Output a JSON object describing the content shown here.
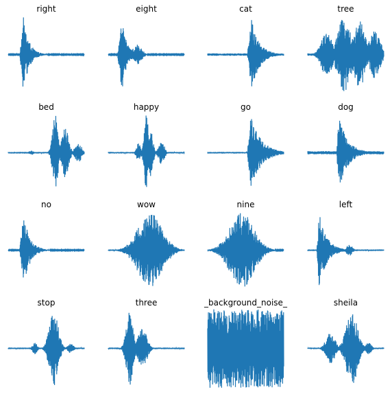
{
  "figure": {
    "line_color": "#1f77b4",
    "background": "#ffffff",
    "axes_visible": false
  },
  "chart_data": [
    {
      "type": "line",
      "title": "right",
      "waveform": {
        "onset": 0.15,
        "attack": 0.05,
        "decay": 0.22,
        "peak": 0.95,
        "floor": 0.01,
        "tail": 0.06
      }
    },
    {
      "type": "line",
      "title": "eight",
      "waveform": {
        "onset": 0.12,
        "attack": 0.06,
        "decay": 0.18,
        "peak": 0.95,
        "floor": 0.01,
        "tail": 0.08,
        "secondary": {
          "center": 0.38,
          "width": 0.08,
          "peak": 0.25
        }
      }
    },
    {
      "type": "line",
      "title": "cat",
      "waveform": {
        "onset": 0.52,
        "attack": 0.06,
        "decay": 0.3,
        "peak": 0.95,
        "floor": 0.03
      }
    },
    {
      "type": "line",
      "title": "tree",
      "waveform": {
        "onset": 0.1,
        "attack": 0.1,
        "decay": 0.6,
        "peak": 0.9,
        "floor": 0.03,
        "segments": [
          {
            "center": 0.25,
            "width": 0.1,
            "peak": 0.55
          },
          {
            "center": 0.48,
            "width": 0.12,
            "peak": 0.95
          },
          {
            "center": 0.68,
            "width": 0.1,
            "peak": 0.85
          },
          {
            "center": 0.88,
            "width": 0.1,
            "peak": 0.6
          }
        ]
      }
    },
    {
      "type": "line",
      "title": "bed",
      "waveform": {
        "onset": 0.55,
        "attack": 0.02,
        "decay": 0.45,
        "peak": 0.95,
        "floor": 0.02,
        "segments": [
          {
            "center": 0.62,
            "width": 0.05,
            "peak": 0.95
          },
          {
            "center": 0.75,
            "width": 0.06,
            "peak": 0.65
          },
          {
            "center": 0.92,
            "width": 0.06,
            "peak": 0.25
          },
          {
            "center": 0.3,
            "width": 0.04,
            "peak": 0.06
          }
        ]
      }
    },
    {
      "type": "line",
      "title": "happy",
      "waveform": {
        "onset": 0.3,
        "attack": 0.1,
        "decay": 0.6,
        "peak": 0.95,
        "floor": 0.02,
        "segments": [
          {
            "center": 0.4,
            "width": 0.04,
            "peak": 0.25
          },
          {
            "center": 0.5,
            "width": 0.04,
            "peak": 0.95
          },
          {
            "center": 0.56,
            "width": 0.04,
            "peak": 0.6
          },
          {
            "center": 0.7,
            "width": 0.05,
            "peak": 0.3
          }
        ]
      }
    },
    {
      "type": "line",
      "title": "go",
      "waveform": {
        "onset": 0.52,
        "attack": 0.05,
        "decay": 0.4,
        "peak": 0.95,
        "floor": 0.02
      }
    },
    {
      "type": "line",
      "title": "dog",
      "waveform": {
        "onset": 0.38,
        "attack": 0.03,
        "decay": 0.35,
        "peak": 0.95,
        "floor": 0.04
      }
    },
    {
      "type": "line",
      "title": "no",
      "waveform": {
        "onset": 0.15,
        "attack": 0.05,
        "decay": 0.25,
        "peak": 0.95,
        "floor": 0.01
      }
    },
    {
      "type": "line",
      "title": "wow",
      "waveform": {
        "onset": 0.35,
        "attack": 0.15,
        "decay": 0.5,
        "peak": 0.95,
        "floor": 0.02,
        "segments": [
          {
            "center": 0.25,
            "width": 0.05,
            "peak": 0.08
          },
          {
            "center": 0.55,
            "width": 0.22,
            "peak": 0.95
          }
        ]
      }
    },
    {
      "type": "line",
      "title": "nine",
      "waveform": {
        "onset": 0.25,
        "attack": 0.1,
        "decay": 0.5,
        "peak": 0.95,
        "floor": 0.01,
        "segments": [
          {
            "center": 0.45,
            "width": 0.22,
            "peak": 0.95
          }
        ]
      }
    },
    {
      "type": "line",
      "title": "left",
      "waveform": {
        "onset": 0.12,
        "attack": 0.03,
        "decay": 0.3,
        "peak": 0.95,
        "floor": 0.02,
        "secondary": {
          "center": 0.55,
          "width": 0.05,
          "peak": 0.15
        }
      }
    },
    {
      "type": "line",
      "title": "stop",
      "waveform": {
        "onset": 0.4,
        "attack": 0.05,
        "decay": 0.3,
        "peak": 0.95,
        "floor": 0.02,
        "segments": [
          {
            "center": 0.6,
            "width": 0.08,
            "peak": 0.95
          },
          {
            "center": 0.35,
            "width": 0.04,
            "peak": 0.15
          },
          {
            "center": 0.82,
            "width": 0.05,
            "peak": 0.12
          }
        ]
      }
    },
    {
      "type": "line",
      "title": "three",
      "waveform": {
        "onset": 0.2,
        "attack": 0.03,
        "decay": 0.35,
        "peak": 0.95,
        "floor": 0.02,
        "segments": [
          {
            "center": 0.28,
            "width": 0.06,
            "peak": 0.95
          },
          {
            "center": 0.45,
            "width": 0.08,
            "peak": 0.5
          }
        ]
      }
    },
    {
      "type": "line",
      "title": "_background_noise_",
      "waveform": {
        "onset": 0.0,
        "attack": 0.0,
        "decay": 1.0,
        "peak": 1.0,
        "floor": 1.0,
        "noise": true
      }
    },
    {
      "type": "line",
      "title": "sheila",
      "waveform": {
        "onset": 0.25,
        "attack": 0.15,
        "decay": 0.5,
        "peak": 0.95,
        "floor": 0.02,
        "segments": [
          {
            "center": 0.3,
            "width": 0.08,
            "peak": 0.4
          },
          {
            "center": 0.58,
            "width": 0.1,
            "peak": 0.95
          },
          {
            "center": 0.8,
            "width": 0.05,
            "peak": 0.15
          }
        ]
      }
    }
  ]
}
